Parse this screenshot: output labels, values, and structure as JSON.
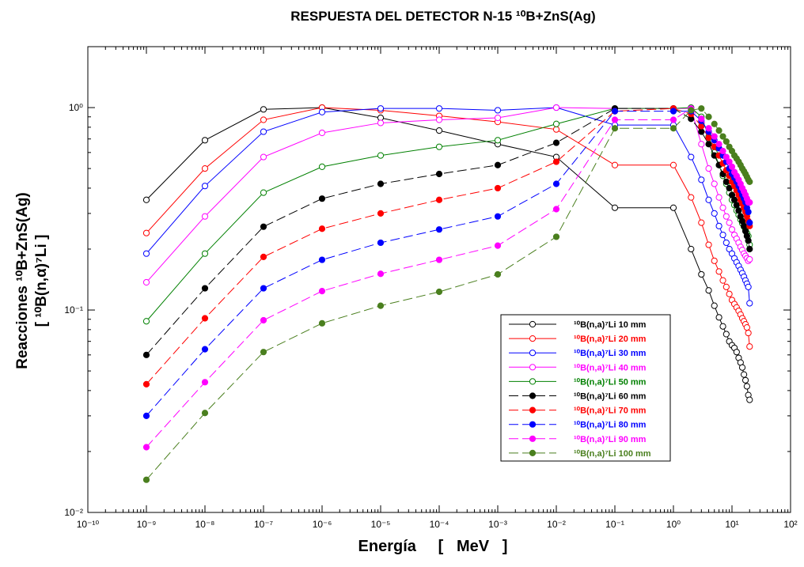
{
  "chart_data": {
    "type": "line",
    "title": "RESPUESTA DEL DETECTOR N-15 ¹⁰B+ZnS(Ag)",
    "xlabel": "Energía     [   MeV   ]",
    "ylabel_line1": "Reacciones ¹⁰B+ZnS(Ag)",
    "ylabel_line2": "[ ¹⁰B(n,α)⁷Li ]",
    "xscale": "log",
    "yscale": "log",
    "xlim": [
      1e-10,
      100
    ],
    "ylim": [
      0.01,
      2
    ],
    "x_tick_labels": [
      "10⁻¹⁰",
      "10⁻⁹",
      "10⁻⁸",
      "10⁻⁷",
      "10⁻⁶",
      "10⁻⁵",
      "10⁻⁴",
      "10⁻³",
      "10⁻²",
      "10⁻¹",
      "10⁰",
      "10¹",
      "10²"
    ],
    "y_tick_labels": [
      "10⁻²",
      "10⁻¹",
      "10⁰"
    ],
    "legend_position": "right",
    "x": [
      1e-09,
      1e-08,
      1e-07,
      1e-06,
      1e-05,
      0.0001,
      0.001,
      0.01,
      0.1,
      1,
      2,
      3,
      4,
      5,
      6,
      7,
      8,
      9,
      10,
      11,
      12,
      13,
      14,
      15,
      16,
      17,
      18,
      19,
      20
    ],
    "series": [
      {
        "name": "¹⁰B(n,a)⁷Li 10 mm",
        "color": "#000000",
        "marker": "open",
        "dashed": false,
        "values": [
          0.35,
          0.69,
          0.98,
          1.0,
          0.89,
          0.77,
          0.66,
          0.57,
          0.32,
          0.32,
          0.2,
          0.15,
          0.125,
          0.105,
          0.092,
          0.083,
          0.076,
          0.07,
          0.067,
          0.065,
          0.062,
          0.058,
          0.055,
          0.052,
          0.048,
          0.045,
          0.042,
          0.038,
          0.036
        ]
      },
      {
        "name": "¹⁰B(n,a)⁷Li 20 mm",
        "color": "#ff0000",
        "marker": "open",
        "dashed": false,
        "values": [
          0.24,
          0.5,
          0.87,
          1.0,
          0.97,
          0.91,
          0.85,
          0.78,
          0.52,
          0.52,
          0.36,
          0.27,
          0.21,
          0.175,
          0.155,
          0.14,
          0.13,
          0.12,
          0.112,
          0.107,
          0.103,
          0.099,
          0.095,
          0.091,
          0.088,
          0.085,
          0.082,
          0.077,
          0.066
        ]
      },
      {
        "name": "¹⁰B(n,a)⁷Li 30 mm",
        "color": "#0000ff",
        "marker": "open",
        "dashed": false,
        "values": [
          0.19,
          0.41,
          0.76,
          0.95,
          0.99,
          0.99,
          0.97,
          1.0,
          0.82,
          0.82,
          0.57,
          0.44,
          0.35,
          0.3,
          0.26,
          0.235,
          0.215,
          0.2,
          0.19,
          0.18,
          0.172,
          0.165,
          0.158,
          0.152,
          0.146,
          0.14,
          0.135,
          0.13,
          0.108
        ]
      },
      {
        "name": "¹⁰B(n,a)⁷Li 40 mm",
        "color": "#ff00ff",
        "marker": "open",
        "dashed": false,
        "values": [
          0.137,
          0.29,
          0.57,
          0.75,
          0.84,
          0.87,
          0.89,
          1.0,
          0.99,
          0.99,
          0.99,
          0.66,
          0.5,
          0.42,
          0.36,
          0.32,
          0.29,
          0.27,
          0.25,
          0.235,
          0.225,
          0.215,
          0.205,
          0.198,
          0.19,
          0.185,
          0.18,
          0.175,
          0.178
        ]
      },
      {
        "name": "¹⁰B(n,a)⁷Li 50 mm",
        "color": "#008000",
        "marker": "open",
        "dashed": false,
        "values": [
          0.088,
          0.19,
          0.38,
          0.51,
          0.58,
          0.64,
          0.69,
          0.83,
          0.99,
          0.99,
          1.0,
          0.9,
          0.72,
          0.6,
          0.52,
          0.46,
          0.42,
          0.38,
          0.35,
          0.33,
          0.31,
          0.295,
          0.28,
          0.268,
          0.258,
          0.248,
          0.24,
          0.232,
          0.21
        ]
      },
      {
        "name": "¹⁰B(n,a)⁷Li 60 mm",
        "color": "#000000",
        "marker": "filled",
        "dashed": true,
        "values": [
          0.06,
          0.128,
          0.258,
          0.355,
          0.42,
          0.47,
          0.52,
          0.67,
          0.99,
          0.99,
          0.88,
          0.76,
          0.66,
          0.58,
          0.52,
          0.47,
          0.43,
          0.4,
          0.37,
          0.35,
          0.33,
          0.31,
          0.29,
          0.275,
          0.26,
          0.245,
          0.232,
          0.22,
          0.2
        ]
      },
      {
        "name": "¹⁰B(n,a)⁷Li 70 mm",
        "color": "#ff0000",
        "marker": "filled",
        "dashed": true,
        "values": [
          0.043,
          0.091,
          0.183,
          0.252,
          0.3,
          0.35,
          0.4,
          0.54,
          0.96,
          0.99,
          0.93,
          0.81,
          0.71,
          0.64,
          0.58,
          0.53,
          0.49,
          0.46,
          0.43,
          0.41,
          0.39,
          0.37,
          0.35,
          0.335,
          0.32,
          0.305,
          0.29,
          0.275,
          0.26
        ]
      },
      {
        "name": "¹⁰B(n,a)⁷Li 80 mm",
        "color": "#0000ff",
        "marker": "filled",
        "dashed": true,
        "values": [
          0.03,
          0.064,
          0.128,
          0.177,
          0.215,
          0.25,
          0.29,
          0.42,
          0.96,
          0.96,
          0.96,
          0.86,
          0.76,
          0.69,
          0.63,
          0.58,
          0.54,
          0.5,
          0.47,
          0.45,
          0.43,
          0.41,
          0.39,
          0.37,
          0.355,
          0.34,
          0.32,
          0.305,
          0.27
        ]
      },
      {
        "name": "¹⁰B(n,a)⁷Li 90 mm",
        "color": "#ff00ff",
        "marker": "filled",
        "dashed": true,
        "values": [
          0.021,
          0.044,
          0.089,
          0.124,
          0.151,
          0.177,
          0.208,
          0.315,
          0.87,
          0.87,
          0.99,
          0.88,
          0.79,
          0.72,
          0.66,
          0.61,
          0.57,
          0.54,
          0.51,
          0.48,
          0.46,
          0.44,
          0.42,
          0.4,
          0.385,
          0.37,
          0.355,
          0.34,
          0.34
        ]
      },
      {
        "name": "¹⁰B(n,a)⁷Li 100 mm",
        "color": "#4a7f1e",
        "marker": "filled",
        "dashed": true,
        "values": [
          0.0145,
          0.031,
          0.062,
          0.086,
          0.105,
          0.123,
          0.15,
          0.23,
          0.79,
          0.79,
          0.97,
          0.99,
          0.9,
          0.83,
          0.77,
          0.72,
          0.68,
          0.64,
          0.61,
          0.58,
          0.56,
          0.54,
          0.52,
          0.5,
          0.485,
          0.47,
          0.455,
          0.44,
          0.43
        ]
      }
    ]
  }
}
